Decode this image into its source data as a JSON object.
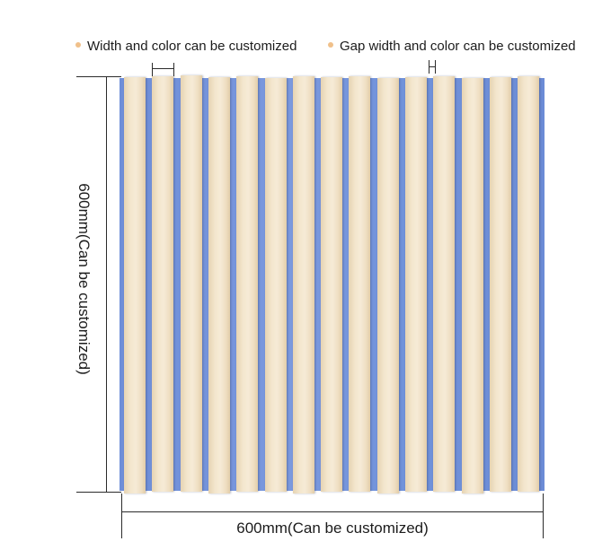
{
  "legend": [
    {
      "text": "Width and color can be customized",
      "dot_color": "#f0c08a"
    },
    {
      "text": "Gap width and color can be customized",
      "dot_color": "#f0c08a"
    }
  ],
  "dimensions": {
    "height_label": "600mm(Can be customized)",
    "width_label": "600mm(Can be customized)"
  },
  "colors": {
    "felt": "#7292da",
    "slat": "#f3e6cd",
    "dimension_line": "#2b2b2b"
  },
  "slat_count": 15
}
